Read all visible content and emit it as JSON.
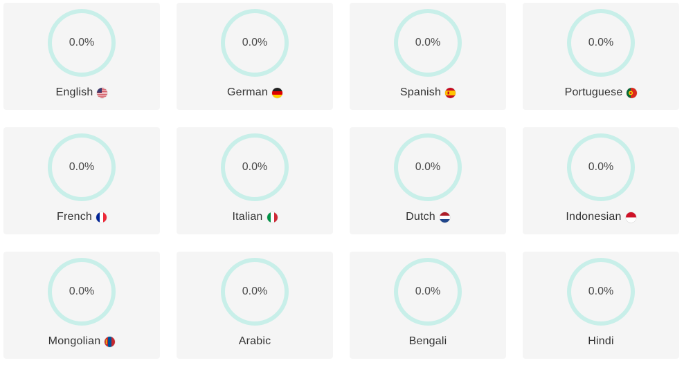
{
  "colors": {
    "card_bg": "#f5f5f5",
    "ring": "#c8efe9",
    "text": "#333333"
  },
  "languages": [
    {
      "name": "English",
      "progress": "0.0%",
      "flag": "us-flag-icon"
    },
    {
      "name": "German",
      "progress": "0.0%",
      "flag": "de-flag-icon"
    },
    {
      "name": "Spanish",
      "progress": "0.0%",
      "flag": "es-flag-icon"
    },
    {
      "name": "Portuguese",
      "progress": "0.0%",
      "flag": "pt-flag-icon"
    },
    {
      "name": "French",
      "progress": "0.0%",
      "flag": "fr-flag-icon"
    },
    {
      "name": "Italian",
      "progress": "0.0%",
      "flag": "it-flag-icon"
    },
    {
      "name": "Dutch",
      "progress": "0.0%",
      "flag": "nl-flag-icon"
    },
    {
      "name": "Indonesian",
      "progress": "0.0%",
      "flag": "id-flag-icon"
    },
    {
      "name": "Mongolian",
      "progress": "0.0%",
      "flag": "mn-flag-icon"
    },
    {
      "name": "Arabic",
      "progress": "0.0%",
      "flag": ""
    },
    {
      "name": "Bengali",
      "progress": "0.0%",
      "flag": ""
    },
    {
      "name": "Hindi",
      "progress": "0.0%",
      "flag": ""
    }
  ]
}
